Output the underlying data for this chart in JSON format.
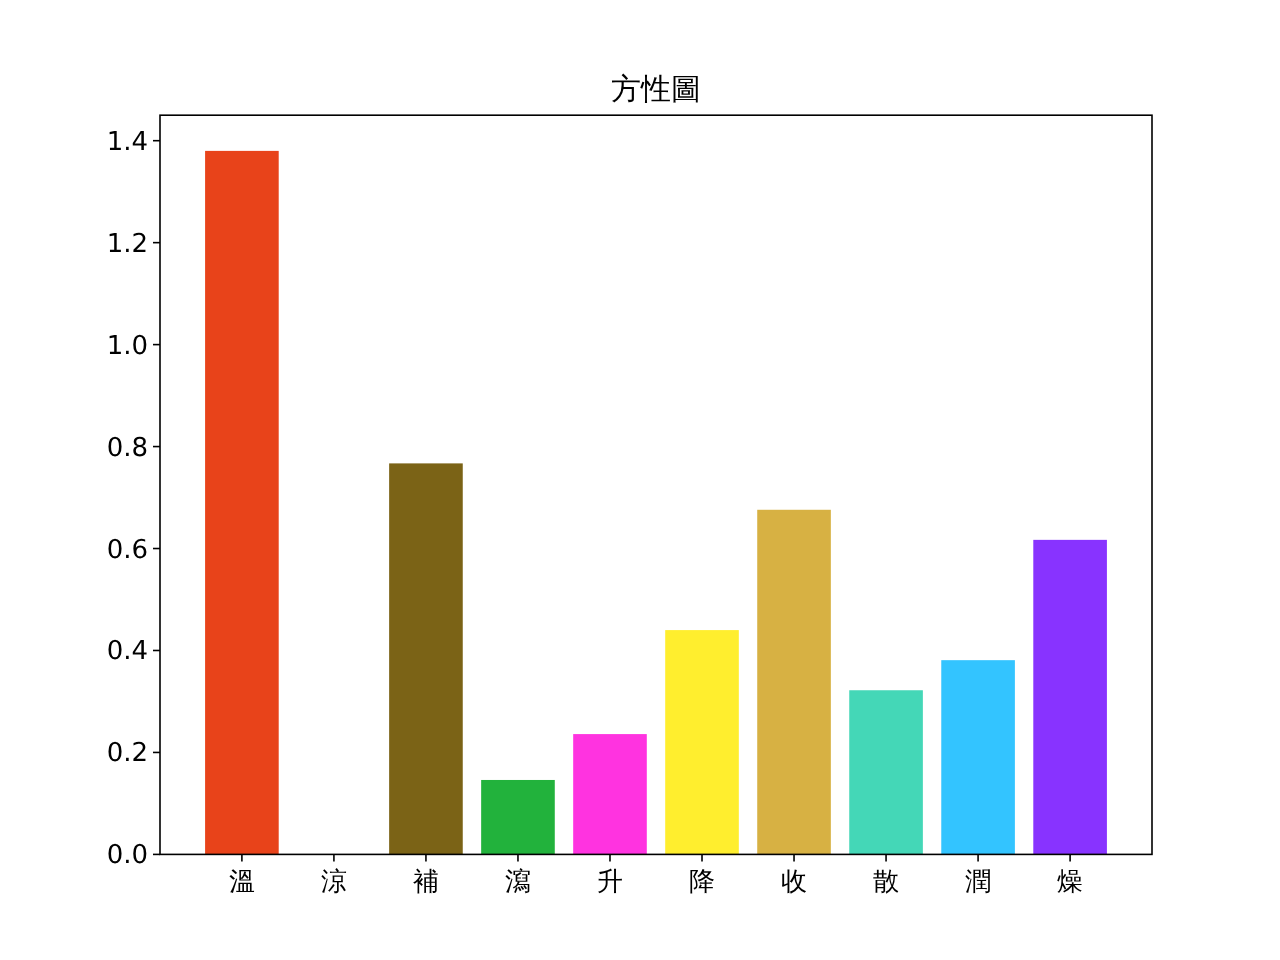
{
  "chart_data": {
    "type": "bar",
    "title": "方性圖",
    "categories": [
      "溫",
      "涼",
      "補",
      "瀉",
      "升",
      "降",
      "收",
      "散",
      "潤",
      "燥"
    ],
    "values": [
      1.38,
      0,
      0.767,
      0.146,
      0.236,
      0.44,
      0.676,
      0.322,
      0.381,
      0.617
    ],
    "colors": [
      "#e8431a",
      "#e8431a",
      "#7b6316",
      "#22b23c",
      "#ff33e0",
      "#ffee2e",
      "#d7b143",
      "#44d7b7",
      "#33c4ff",
      "#8833ff"
    ],
    "ylim": [
      0,
      1.45
    ],
    "yticks": [
      {
        "value": 0,
        "label": "0.0"
      },
      0.2,
      0.4,
      0.6,
      0.8,
      {
        "value": 1,
        "label": "1.0"
      },
      1.2,
      1.4
    ]
  }
}
